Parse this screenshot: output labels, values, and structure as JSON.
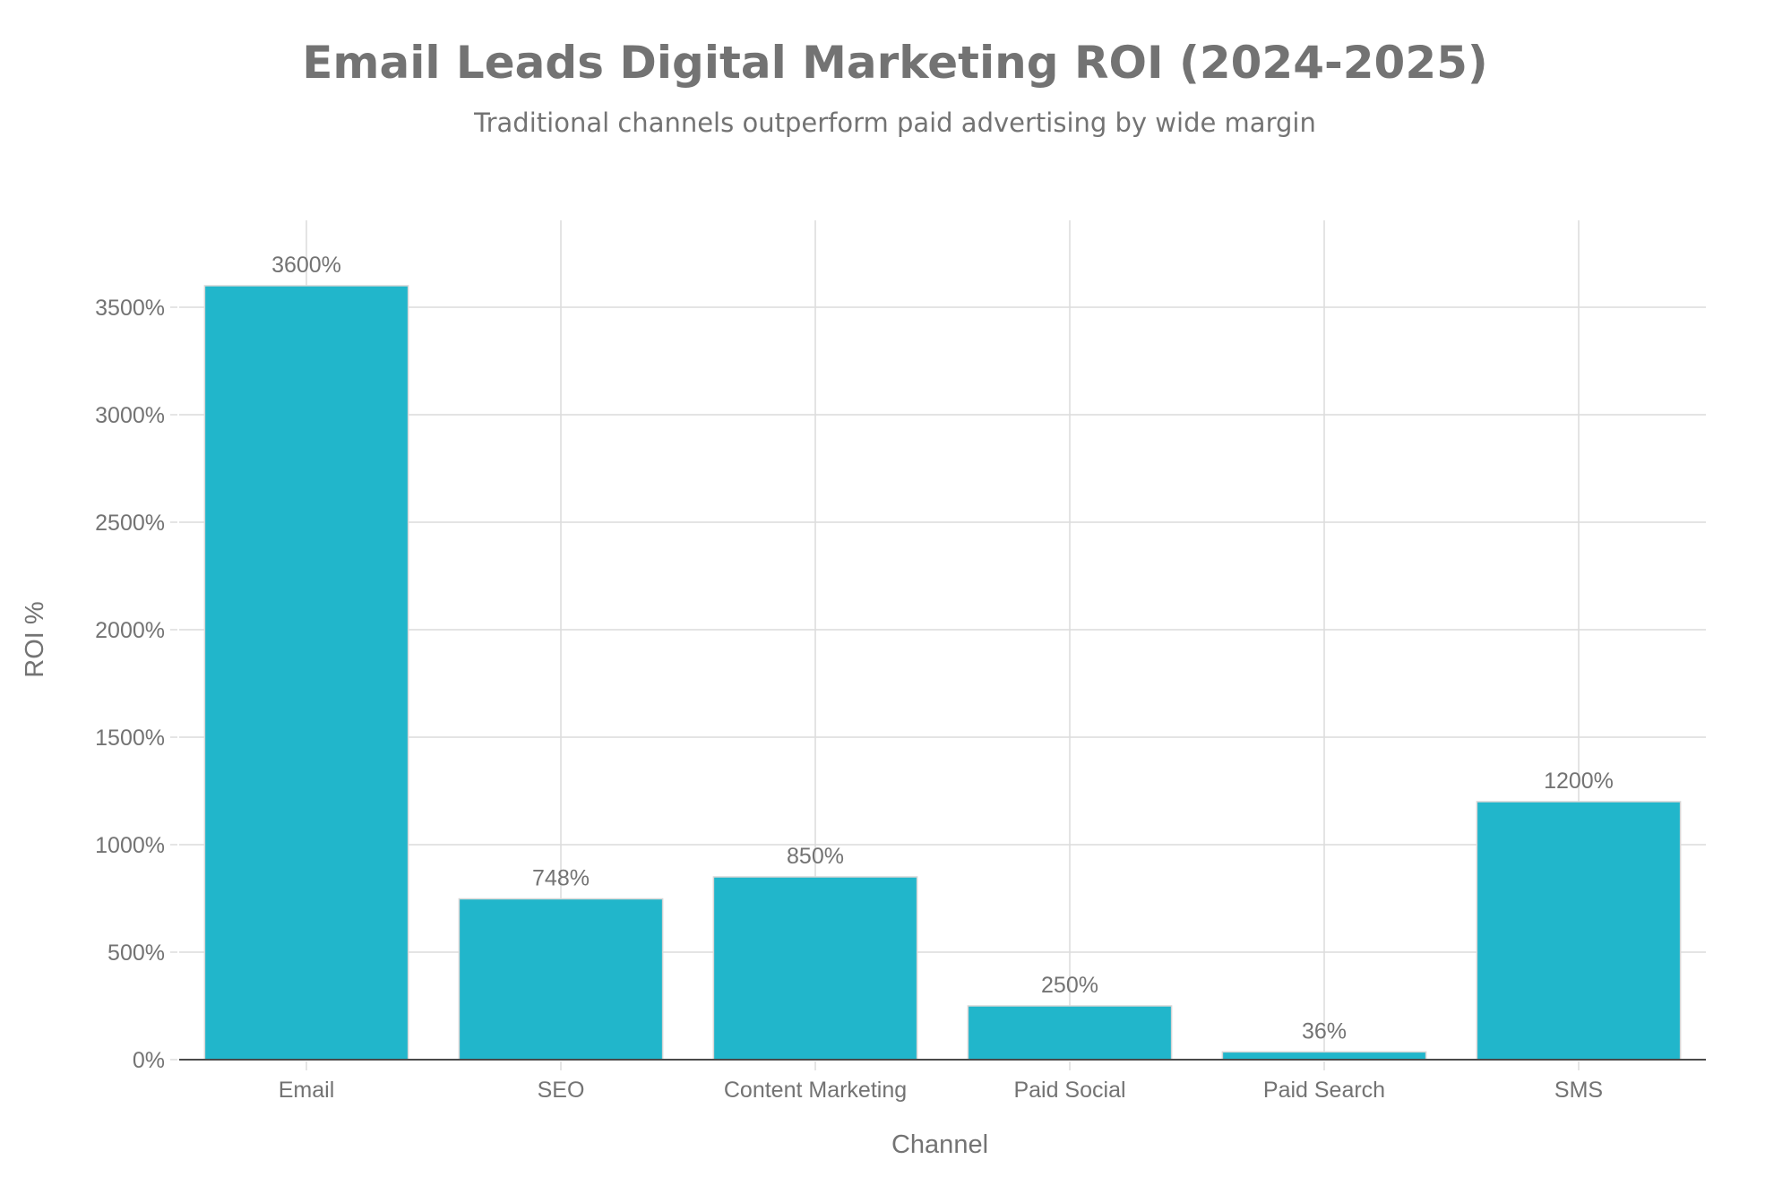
{
  "chart_data": {
    "type": "bar",
    "title": "Email Leads Digital Marketing ROI (2024-2025)",
    "subtitle": "Traditional channels outperform paid advertising by wide margin",
    "xlabel": "Channel",
    "ylabel": "ROI %",
    "categories": [
      "Email",
      "SEO",
      "Content Marketing",
      "Paid Social",
      "Paid Search",
      "SMS"
    ],
    "values": [
      3600,
      748,
      850,
      250,
      36,
      1200
    ],
    "data_labels": [
      "3600%",
      "748%",
      "850%",
      "250%",
      "36%",
      "1200%"
    ],
    "yticks": [
      0,
      500,
      1000,
      1500,
      2000,
      2500,
      3000,
      3500
    ],
    "ytick_labels": [
      "0%",
      "500%",
      "1000%",
      "1500%",
      "2000%",
      "2500%",
      "3000%",
      "3500%"
    ],
    "ylim": [
      0,
      3890
    ],
    "grid": true,
    "legend": null,
    "colors": {
      "bar": "#21B6CB",
      "text": "#737373",
      "grid": "#dcdcdc",
      "axis": "#4a4a4a"
    }
  }
}
